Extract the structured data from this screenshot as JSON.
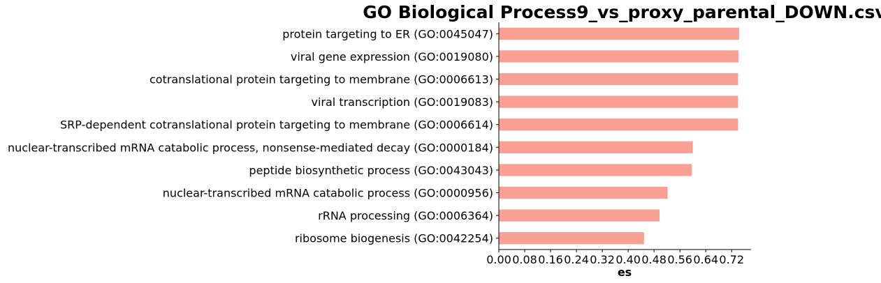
{
  "chart_data": {
    "type": "bar",
    "orientation": "horizontal",
    "title": "GO Biological Process9_vs_proxy_parental_DOWN.csv",
    "xlabel": "es",
    "ylabel": "",
    "categories": [
      "protein targeting to ER (GO:0045047)",
      "viral gene expression (GO:0019080)",
      "cotranslational protein targeting to membrane (GO:0006613)",
      "viral transcription (GO:0019083)",
      "SRP-dependent cotranslational protein targeting to membrane (GO:0006614)",
      "nuclear-transcribed mRNA catabolic process, nonsense-mediated decay (GO:0000184)",
      "peptide biosynthetic process (GO:0043043)",
      "nuclear-transcribed mRNA catabolic process (GO:0000956)",
      "rRNA processing (GO:0006364)",
      "ribosome biogenesis (GO:0042254)"
    ],
    "values": [
      0.743,
      0.741,
      0.74,
      0.74,
      0.74,
      0.6,
      0.597,
      0.522,
      0.497,
      0.449
    ],
    "x_ticks": [
      "0.00",
      "0.08",
      "0.16",
      "0.24",
      "0.32",
      "0.40",
      "0.48",
      "0.56",
      "0.64",
      "0.72"
    ],
    "x_tick_values": [
      0,
      0.08,
      0.16,
      0.24,
      0.32,
      0.4,
      0.48,
      0.56,
      0.64,
      0.72
    ],
    "xlim": [
      0,
      0.78
    ],
    "grid": false,
    "legend": "none",
    "colors": {
      "bar": "#fa9f93",
      "axis": "#000000"
    }
  }
}
